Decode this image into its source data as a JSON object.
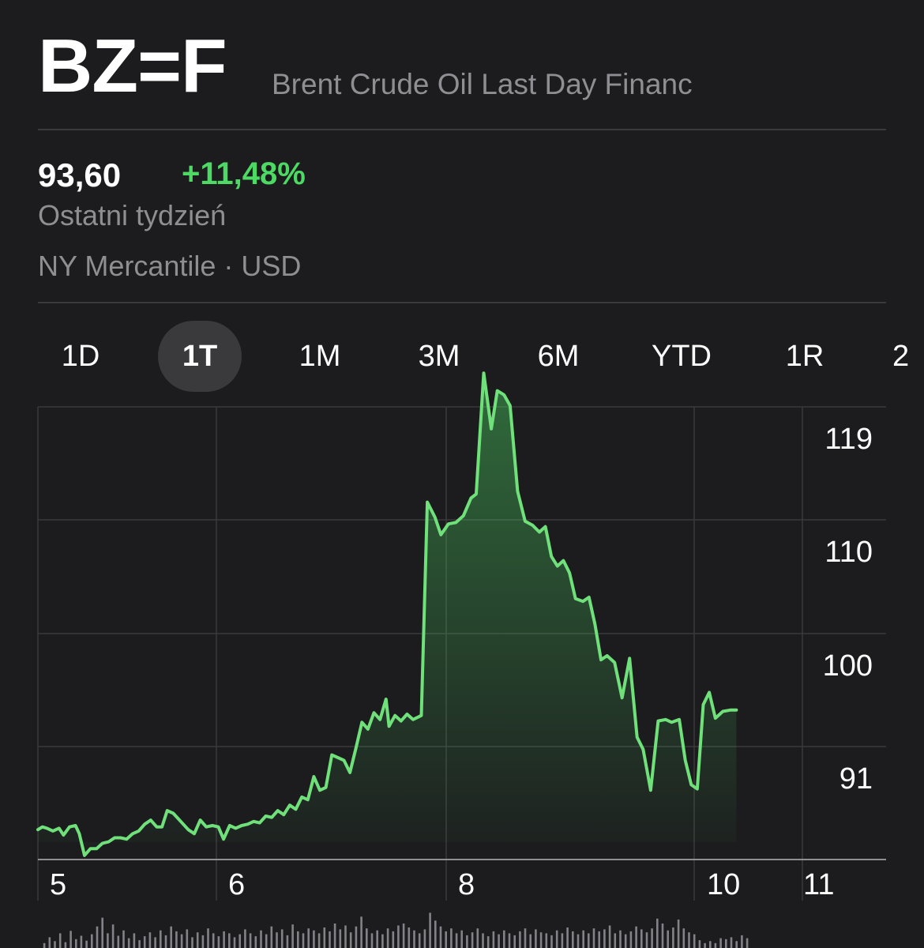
{
  "header": {
    "symbol": "BZ=F",
    "name": "Brent Crude Oil Last Day Financ"
  },
  "quote": {
    "price": "93,60",
    "change": "+11,48%",
    "period": "Ostatni tydzień",
    "exchange": "NY Mercantile · USD"
  },
  "tabs": [
    {
      "label": "1D",
      "active": false
    },
    {
      "label": "1T",
      "active": true
    },
    {
      "label": "1M",
      "active": false
    },
    {
      "label": "3M",
      "active": false
    },
    {
      "label": "6M",
      "active": false
    },
    {
      "label": "YTD",
      "active": false
    },
    {
      "label": "1R",
      "active": false
    },
    {
      "label": "2",
      "active": false
    }
  ],
  "colors": {
    "background": "#1c1c1e",
    "positive": "#4cd964",
    "line": "#6fe07a",
    "grid": "#3a3a3c",
    "secondary_text": "#8e8e93"
  },
  "chart_data": {
    "type": "area",
    "ylabels": [
      "119",
      "110",
      "100",
      "91"
    ],
    "xlabels": [
      "5",
      "6",
      "8",
      "10",
      "11"
    ],
    "ylim": [
      84.5,
      122
    ],
    "grid": true,
    "points": [
      {
        "t": 0.0,
        "v": 87.2
      },
      {
        "t": 0.006,
        "v": 87.4
      },
      {
        "t": 0.012,
        "v": 87.3
      },
      {
        "t": 0.02,
        "v": 87.1
      },
      {
        "t": 0.028,
        "v": 87.3
      },
      {
        "t": 0.034,
        "v": 86.8
      },
      {
        "t": 0.042,
        "v": 87.4
      },
      {
        "t": 0.05,
        "v": 87.5
      },
      {
        "t": 0.055,
        "v": 86.9
      },
      {
        "t": 0.062,
        "v": 85.3
      },
      {
        "t": 0.07,
        "v": 85.8
      },
      {
        "t": 0.078,
        "v": 85.8
      },
      {
        "t": 0.086,
        "v": 86.2
      },
      {
        "t": 0.094,
        "v": 86.3
      },
      {
        "t": 0.102,
        "v": 86.6
      },
      {
        "t": 0.11,
        "v": 86.6
      },
      {
        "t": 0.118,
        "v": 86.5
      },
      {
        "t": 0.126,
        "v": 86.9
      },
      {
        "t": 0.134,
        "v": 87.1
      },
      {
        "t": 0.142,
        "v": 87.6
      },
      {
        "t": 0.15,
        "v": 87.9
      },
      {
        "t": 0.158,
        "v": 87.4
      },
      {
        "t": 0.165,
        "v": 87.4
      },
      {
        "t": 0.172,
        "v": 88.6
      },
      {
        "t": 0.18,
        "v": 88.4
      },
      {
        "t": 0.19,
        "v": 87.8
      },
      {
        "t": 0.2,
        "v": 87.2
      },
      {
        "t": 0.208,
        "v": 86.9
      },
      {
        "t": 0.216,
        "v": 87.9
      },
      {
        "t": 0.224,
        "v": 87.4
      },
      {
        "t": 0.232,
        "v": 87.5
      },
      {
        "t": 0.24,
        "v": 87.4
      },
      {
        "t": 0.247,
        "v": 86.5
      },
      {
        "t": 0.255,
        "v": 87.5
      },
      {
        "t": 0.263,
        "v": 87.3
      },
      {
        "t": 0.271,
        "v": 87.5
      },
      {
        "t": 0.279,
        "v": 87.6
      },
      {
        "t": 0.287,
        "v": 87.8
      },
      {
        "t": 0.295,
        "v": 87.7
      },
      {
        "t": 0.303,
        "v": 88.2
      },
      {
        "t": 0.311,
        "v": 88.1
      },
      {
        "t": 0.319,
        "v": 88.6
      },
      {
        "t": 0.327,
        "v": 88.3
      },
      {
        "t": 0.335,
        "v": 89.0
      },
      {
        "t": 0.343,
        "v": 88.7
      },
      {
        "t": 0.351,
        "v": 89.6
      },
      {
        "t": 0.359,
        "v": 89.4
      },
      {
        "t": 0.367,
        "v": 91.1
      },
      {
        "t": 0.375,
        "v": 90.1
      },
      {
        "t": 0.383,
        "v": 90.3
      },
      {
        "t": 0.391,
        "v": 92.7
      },
      {
        "t": 0.399,
        "v": 92.5
      },
      {
        "t": 0.407,
        "v": 92.3
      },
      {
        "t": 0.415,
        "v": 91.4
      },
      {
        "t": 0.423,
        "v": 93.2
      },
      {
        "t": 0.431,
        "v": 95.1
      },
      {
        "t": 0.439,
        "v": 94.6
      },
      {
        "t": 0.447,
        "v": 95.8
      },
      {
        "t": 0.455,
        "v": 95.3
      },
      {
        "t": 0.463,
        "v": 96.8
      },
      {
        "t": 0.467,
        "v": 94.8
      },
      {
        "t": 0.475,
        "v": 95.6
      },
      {
        "t": 0.483,
        "v": 95.2
      },
      {
        "t": 0.491,
        "v": 95.7
      },
      {
        "t": 0.499,
        "v": 95.3
      },
      {
        "t": 0.51,
        "v": 95.6
      },
      {
        "t": 0.518,
        "v": 111.3
      },
      {
        "t": 0.528,
        "v": 110.2
      },
      {
        "t": 0.536,
        "v": 108.9
      },
      {
        "t": 0.546,
        "v": 109.7
      },
      {
        "t": 0.556,
        "v": 109.8
      },
      {
        "t": 0.566,
        "v": 110.3
      },
      {
        "t": 0.576,
        "v": 111.6
      },
      {
        "t": 0.583,
        "v": 111.9
      },
      {
        "t": 0.593,
        "v": 120.8
      },
      {
        "t": 0.603,
        "v": 116.7
      },
      {
        "t": 0.611,
        "v": 119.5
      },
      {
        "t": 0.62,
        "v": 119.2
      },
      {
        "t": 0.628,
        "v": 118.4
      },
      {
        "t": 0.638,
        "v": 112.1
      },
      {
        "t": 0.648,
        "v": 109.9
      },
      {
        "t": 0.658,
        "v": 109.6
      },
      {
        "t": 0.667,
        "v": 109.1
      },
      {
        "t": 0.675,
        "v": 109.5
      },
      {
        "t": 0.683,
        "v": 107.3
      },
      {
        "t": 0.691,
        "v": 106.6
      },
      {
        "t": 0.699,
        "v": 107.0
      },
      {
        "t": 0.707,
        "v": 106.1
      },
      {
        "t": 0.715,
        "v": 104.2
      },
      {
        "t": 0.725,
        "v": 104.0
      },
      {
        "t": 0.733,
        "v": 104.3
      },
      {
        "t": 0.741,
        "v": 102.3
      },
      {
        "t": 0.749,
        "v": 99.7
      },
      {
        "t": 0.757,
        "v": 100.0
      },
      {
        "t": 0.767,
        "v": 99.5
      },
      {
        "t": 0.777,
        "v": 96.9
      },
      {
        "t": 0.787,
        "v": 99.8
      },
      {
        "t": 0.797,
        "v": 94.0
      },
      {
        "t": 0.805,
        "v": 93.1
      },
      {
        "t": 0.815,
        "v": 90.1
      },
      {
        "t": 0.825,
        "v": 95.2
      },
      {
        "t": 0.835,
        "v": 95.3
      },
      {
        "t": 0.843,
        "v": 95.1
      },
      {
        "t": 0.853,
        "v": 95.3
      },
      {
        "t": 0.861,
        "v": 92.3
      },
      {
        "t": 0.869,
        "v": 90.5
      },
      {
        "t": 0.877,
        "v": 90.2
      },
      {
        "t": 0.885,
        "v": 96.4
      },
      {
        "t": 0.893,
        "v": 97.3
      },
      {
        "t": 0.901,
        "v": 95.4
      },
      {
        "t": 0.911,
        "v": 95.9
      },
      {
        "t": 0.921,
        "v": 96.0
      },
      {
        "t": 0.929,
        "v": 96.0
      }
    ],
    "volume": [
      0.1,
      0.22,
      0.14,
      0.3,
      0.12,
      0.35,
      0.18,
      0.25,
      0.15,
      0.28,
      0.44,
      0.62,
      0.3,
      0.48,
      0.25,
      0.36,
      0.2,
      0.3,
      0.16,
      0.24,
      0.32,
      0.22,
      0.36,
      0.26,
      0.44,
      0.34,
      0.28,
      0.38,
      0.22,
      0.32,
      0.26,
      0.4,
      0.3,
      0.24,
      0.34,
      0.3,
      0.22,
      0.28,
      0.38,
      0.3,
      0.24,
      0.36,
      0.28,
      0.44,
      0.32,
      0.38,
      0.26,
      0.48,
      0.34,
      0.3,
      0.4,
      0.36,
      0.3,
      0.42,
      0.34,
      0.5,
      0.38,
      0.46,
      0.32,
      0.44,
      0.64,
      0.4,
      0.3,
      0.36,
      0.28,
      0.4,
      0.34,
      0.46,
      0.5,
      0.42,
      0.36,
      0.3,
      0.38,
      0.72,
      0.56,
      0.44,
      0.34,
      0.4,
      0.3,
      0.36,
      0.26,
      0.32,
      0.4,
      0.3,
      0.24,
      0.34,
      0.28,
      0.36,
      0.3,
      0.26,
      0.34,
      0.4,
      0.28,
      0.38,
      0.32,
      0.3,
      0.26,
      0.36,
      0.3,
      0.42,
      0.34,
      0.28,
      0.36,
      0.3,
      0.4,
      0.34,
      0.38,
      0.46,
      0.3,
      0.36,
      0.28,
      0.34,
      0.44,
      0.38,
      0.32,
      0.4,
      0.6,
      0.5,
      0.36,
      0.42,
      0.58,
      0.4,
      0.32,
      0.28,
      0.16,
      0.1,
      0.14,
      0.1,
      0.2,
      0.18,
      0.22,
      0.14,
      0.26,
      0.2
    ]
  }
}
